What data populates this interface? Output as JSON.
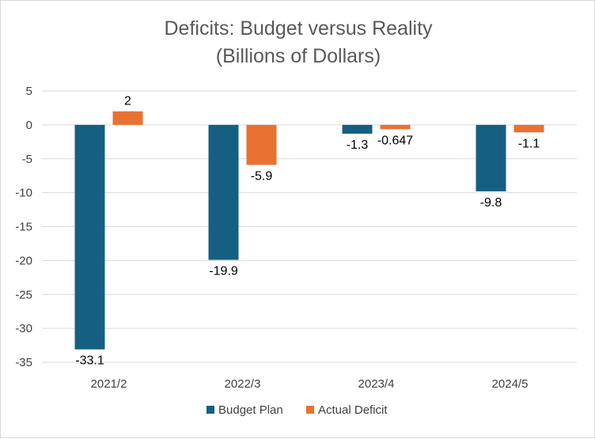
{
  "chart_data": {
    "type": "bar",
    "title": [
      "Deficits: Budget versus Reality",
      "(Billions of Dollars)"
    ],
    "categories": [
      "2021/2",
      "2022/3",
      "2023/4",
      "2024/5"
    ],
    "series": [
      {
        "name": "Budget Plan",
        "color": "#156082",
        "values": [
          -33.1,
          -19.9,
          -1.3,
          -9.8
        ],
        "labels": [
          "-33.1",
          "-19.9",
          "-1.3",
          "-9.8"
        ]
      },
      {
        "name": "Actual Deficit",
        "color": "#E97132",
        "values": [
          2,
          -5.9,
          -0.647,
          -1.1
        ],
        "labels": [
          "2",
          "-5.9",
          "-0.647",
          "-1.1"
        ]
      }
    ],
    "ylim": [
      -35,
      5
    ],
    "yticks": [
      5,
      0,
      -5,
      -10,
      -15,
      -20,
      -25,
      -30,
      -35
    ],
    "grid": true,
    "legend": "bottom",
    "xlabel": "",
    "ylabel": ""
  }
}
